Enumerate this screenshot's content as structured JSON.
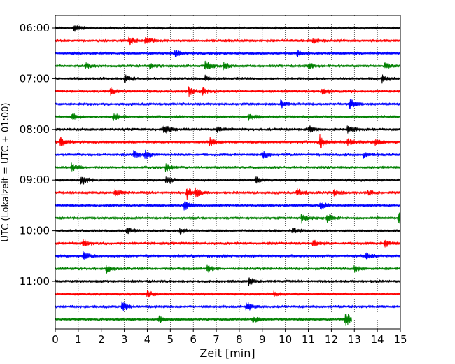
{
  "chart_data": {
    "type": "line",
    "title": "",
    "xlabel": "Zeit  [min]",
    "ylabel": "UTC (Lokalzeit = UTC + 01:00)",
    "xlim": [
      0,
      15
    ],
    "x_ticks": [
      "0",
      "1",
      "2",
      "3",
      "4",
      "5",
      "6",
      "7",
      "8",
      "9",
      "10",
      "11",
      "12",
      "13",
      "14",
      "15"
    ],
    "y_ticks": [
      "06:00",
      "07:00",
      "08:00",
      "09:00",
      "10:00",
      "11:00"
    ],
    "grid": "vertical dotted lines at each minute",
    "trace_interval_minutes": 15,
    "color_cycle": [
      "#000000",
      "#ff0000",
      "#0000ff",
      "#008000"
    ],
    "traces": [
      {
        "start": "06:00",
        "color": "#000000",
        "end_min": 15,
        "events": [
          [
            0.8,
            0.5
          ]
        ]
      },
      {
        "start": "06:15",
        "color": "#ff0000",
        "end_min": 15,
        "events": [
          [
            3.2,
            0.7
          ],
          [
            3.9,
            0.6
          ],
          [
            11.2,
            0.5
          ]
        ]
      },
      {
        "start": "06:30",
        "color": "#0000ff",
        "end_min": 15,
        "events": [
          [
            5.2,
            0.6
          ],
          [
            10.5,
            0.5
          ]
        ]
      },
      {
        "start": "06:45",
        "color": "#008000",
        "end_min": 15,
        "events": [
          [
            1.3,
            0.5
          ],
          [
            4.1,
            0.5
          ],
          [
            6.5,
            0.8
          ],
          [
            7.3,
            0.6
          ],
          [
            11.0,
            0.5
          ],
          [
            14.3,
            0.5
          ]
        ]
      },
      {
        "start": "07:00",
        "color": "#000000",
        "end_min": 15,
        "events": [
          [
            3.0,
            0.7
          ],
          [
            6.5,
            0.5
          ],
          [
            14.2,
            0.6
          ]
        ]
      },
      {
        "start": "07:15",
        "color": "#ff0000",
        "end_min": 15,
        "events": [
          [
            2.4,
            0.6
          ],
          [
            5.8,
            0.7
          ],
          [
            6.4,
            0.5
          ],
          [
            11.6,
            0.5
          ]
        ]
      },
      {
        "start": "07:30",
        "color": "#0000ff",
        "end_min": 15,
        "events": [
          [
            9.8,
            0.6
          ],
          [
            12.8,
            0.8
          ]
        ]
      },
      {
        "start": "07:45",
        "color": "#008000",
        "end_min": 15,
        "events": [
          [
            0.7,
            0.6
          ],
          [
            2.5,
            0.6
          ],
          [
            8.4,
            0.7
          ]
        ]
      },
      {
        "start": "08:00",
        "color": "#000000",
        "end_min": 15,
        "events": [
          [
            4.7,
            0.9
          ],
          [
            7.0,
            0.5
          ],
          [
            11.0,
            0.6
          ],
          [
            12.7,
            0.6
          ]
        ]
      },
      {
        "start": "08:15",
        "color": "#ff0000",
        "end_min": 15,
        "events": [
          [
            0.2,
            0.8
          ],
          [
            6.7,
            0.7
          ],
          [
            11.5,
            1.0
          ],
          [
            12.7,
            0.5
          ],
          [
            13.9,
            0.5
          ]
        ]
      },
      {
        "start": "08:30",
        "color": "#0000ff",
        "end_min": 15,
        "events": [
          [
            3.4,
            0.6
          ],
          [
            3.9,
            0.6
          ],
          [
            9.0,
            0.6
          ],
          [
            13.4,
            0.5
          ]
        ]
      },
      {
        "start": "08:45",
        "color": "#008000",
        "end_min": 15,
        "events": [
          [
            0.7,
            0.6
          ],
          [
            4.8,
            0.7
          ]
        ]
      },
      {
        "start": "09:00",
        "color": "#000000",
        "end_min": 15,
        "events": [
          [
            1.1,
            1.0
          ],
          [
            4.8,
            0.7
          ],
          [
            8.7,
            0.5
          ]
        ]
      },
      {
        "start": "09:15",
        "color": "#ff0000",
        "end_min": 15,
        "events": [
          [
            2.6,
            0.6
          ],
          [
            5.7,
            1.0
          ],
          [
            6.1,
            0.7
          ],
          [
            10.5,
            0.6
          ],
          [
            12.1,
            0.5
          ],
          [
            13.6,
            0.4
          ]
        ]
      },
      {
        "start": "09:30",
        "color": "#0000ff",
        "end_min": 15,
        "events": [
          [
            5.6,
            0.8
          ],
          [
            11.5,
            0.6
          ]
        ]
      },
      {
        "start": "09:45",
        "color": "#008000",
        "end_min": 15,
        "events": [
          [
            10.7,
            0.7
          ],
          [
            11.8,
            0.7
          ],
          [
            14.9,
            0.9
          ]
        ]
      },
      {
        "start": "10:00",
        "color": "#000000",
        "end_min": 15,
        "events": [
          [
            3.1,
            0.6
          ],
          [
            5.4,
            0.5
          ],
          [
            10.3,
            0.4
          ]
        ]
      },
      {
        "start": "10:15",
        "color": "#ff0000",
        "end_min": 15,
        "events": [
          [
            1.2,
            0.6
          ],
          [
            11.2,
            0.6
          ],
          [
            14.3,
            0.6
          ]
        ]
      },
      {
        "start": "10:30",
        "color": "#0000ff",
        "end_min": 15,
        "events": [
          [
            1.2,
            0.7
          ],
          [
            13.5,
            0.6
          ]
        ]
      },
      {
        "start": "10:45",
        "color": "#008000",
        "end_min": 15,
        "events": [
          [
            2.2,
            0.7
          ],
          [
            6.6,
            0.6
          ],
          [
            13.0,
            0.5
          ]
        ]
      },
      {
        "start": "11:00",
        "color": "#000000",
        "end_min": 15,
        "events": [
          [
            8.4,
            0.6
          ]
        ]
      },
      {
        "start": "11:15",
        "color": "#ff0000",
        "end_min": 15,
        "events": [
          [
            4.0,
            0.6
          ],
          [
            9.5,
            0.4
          ]
        ]
      },
      {
        "start": "11:30",
        "color": "#0000ff",
        "end_min": 15,
        "events": [
          [
            2.9,
            0.7
          ],
          [
            8.3,
            0.8
          ]
        ]
      },
      {
        "start": "11:45",
        "color": "#008000",
        "end_min": 12.9,
        "events": [
          [
            4.5,
            0.6
          ],
          [
            8.6,
            0.5
          ],
          [
            12.6,
            1.3
          ]
        ]
      }
    ]
  }
}
